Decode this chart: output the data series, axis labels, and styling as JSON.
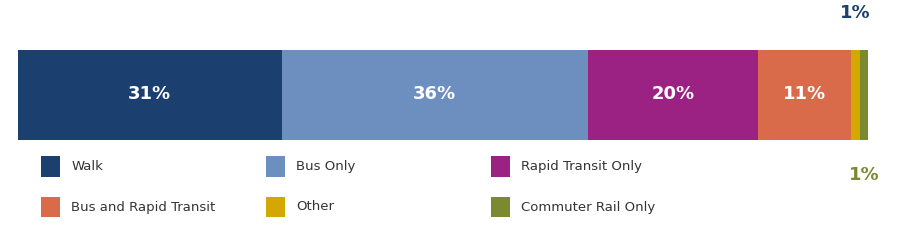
{
  "categories": [
    "Walk",
    "Bus Only",
    "Rapid Transit Only",
    "Bus and Rapid Transit",
    "Other",
    "Commuter Rail Only"
  ],
  "values": [
    31,
    36,
    20,
    11,
    1,
    1
  ],
  "colors": [
    "#1b3f6e",
    "#6d8fc0",
    "#9b2282",
    "#d96b4a",
    "#d4a800",
    "#7a8a2e"
  ],
  "bar_labels": [
    "31%",
    "36%",
    "20%",
    "11%",
    "",
    ""
  ],
  "outside_label_text": "1%",
  "outside_label_color_top": "#1b3f6e",
  "outside_label_color_bottom": "#7a8a2e",
  "label_fontsize": 13,
  "legend_fontsize": 9.5,
  "background_color": "#ffffff",
  "legend_order": [
    0,
    1,
    2,
    3,
    4,
    5
  ]
}
